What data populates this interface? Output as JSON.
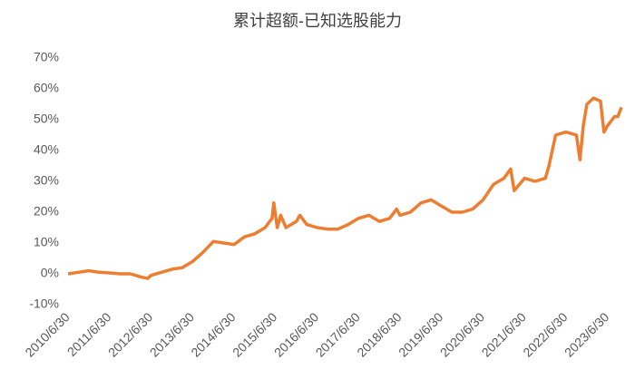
{
  "chart_data": {
    "type": "line",
    "title": "累计超额-已知选股能力",
    "x": [
      "2010/6/30",
      "2010/9/30",
      "2010/12/31",
      "2011/3/31",
      "2011/6/30",
      "2011/9/30",
      "2011/12/31",
      "2012/3/31",
      "2012/5/31",
      "2012/6/30",
      "2012/9/30",
      "2012/12/31",
      "2013/3/31",
      "2013/6/30",
      "2013/9/30",
      "2013/12/31",
      "2014/3/31",
      "2014/6/30",
      "2014/9/30",
      "2014/12/31",
      "2015/3/31",
      "2015/5/31",
      "2015/6/15",
      "2015/7/15",
      "2015/8/15",
      "2015/9/30",
      "2015/12/31",
      "2016/1/31",
      "2016/3/31",
      "2016/6/30",
      "2016/9/30",
      "2016/12/31",
      "2017/3/31",
      "2017/6/30",
      "2017/9/30",
      "2017/12/31",
      "2018/3/31",
      "2018/5/31",
      "2018/6/30",
      "2018/9/30",
      "2018/12/31",
      "2019/3/31",
      "2019/6/30",
      "2019/9/30",
      "2019/12/31",
      "2020/3/31",
      "2020/6/30",
      "2020/9/30",
      "2020/12/31",
      "2021/2/28",
      "2021/3/31",
      "2021/6/30",
      "2021/9/30",
      "2021/12/31",
      "2022/1/31",
      "2022/3/31",
      "2022/6/30",
      "2022/9/30",
      "2022/10/31",
      "2022/11/30",
      "2022/12/31",
      "2023/2/28",
      "2023/4/30",
      "2023/5/31",
      "2023/6/30",
      "2023/8/31",
      "2023/9/30",
      "2023/10/31"
    ],
    "series": [
      {
        "name": "累计超额",
        "color": "#ed7d31",
        "values": [
          0,
          0.5,
          1,
          0.5,
          0.3,
          0,
          0,
          -1,
          -1.5,
          -0.5,
          0.5,
          1.5,
          2,
          4,
          7,
          10.5,
          10,
          9.5,
          12,
          13,
          15,
          18,
          23,
          15,
          19,
          15,
          17,
          19,
          16,
          15,
          14.5,
          14.5,
          16,
          18,
          19,
          17,
          18,
          21,
          19,
          20,
          23,
          24,
          22,
          20,
          20,
          21,
          24,
          29,
          31,
          34,
          27,
          31,
          30,
          31,
          35,
          45,
          46,
          45,
          37,
          48,
          55,
          57,
          56,
          46,
          48,
          51,
          51,
          54
        ]
      }
    ],
    "xlim": [
      "2010/6/30",
      "2023/10/31"
    ],
    "xticks": [
      "2010/6/30",
      "2011/6/30",
      "2012/6/30",
      "2013/6/30",
      "2014/6/30",
      "2015/6/30",
      "2016/6/30",
      "2017/6/30",
      "2018/6/30",
      "2019/6/30",
      "2020/6/30",
      "2021/6/30",
      "2022/6/30",
      "2023/6/30"
    ],
    "ylim": [
      -10,
      70
    ],
    "yticks": [
      {
        "value": -10,
        "label": "-10%"
      },
      {
        "value": 0,
        "label": "0%"
      },
      {
        "value": 10,
        "label": "10%"
      },
      {
        "value": 20,
        "label": "20%"
      },
      {
        "value": 30,
        "label": "30%"
      },
      {
        "value": 40,
        "label": "40%"
      },
      {
        "value": 50,
        "label": "50%"
      },
      {
        "value": 60,
        "label": "60%"
      },
      {
        "value": 70,
        "label": "70%"
      }
    ],
    "grid": false
  }
}
